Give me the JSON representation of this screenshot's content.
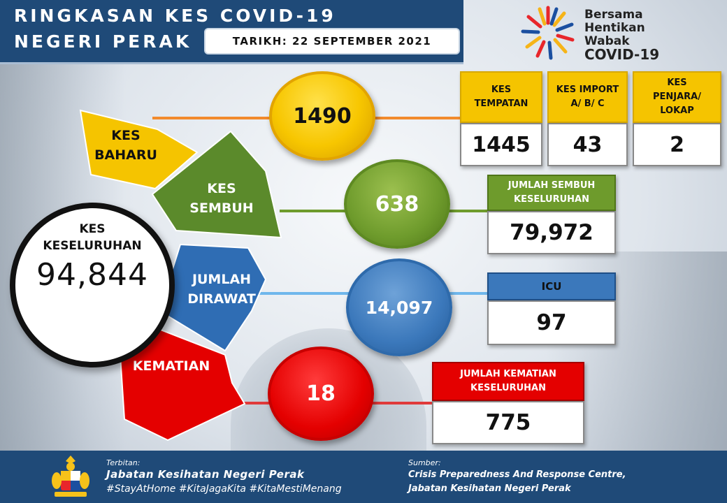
{
  "header": {
    "title_line1": "RINGKASAN KES COVID-19",
    "title_line2": "NEGERI PERAK",
    "date": "TARIKH: 22 SEPTEMBER 2021"
  },
  "logo": {
    "line1": "Bersama",
    "line2": "Hentikan",
    "line3": "Wabak",
    "line4": "COVID-19"
  },
  "total": {
    "label_line1": "KES",
    "label_line2": "KESELURUHAN",
    "value": "94,844"
  },
  "segments": {
    "baharu": {
      "line1": "KES",
      "line2": "BAHARU",
      "value": "1490"
    },
    "sembuh": {
      "line1": "KES",
      "line2": "SEMBUH",
      "value": "638"
    },
    "dirawat": {
      "line1": "JUMLAH",
      "line2": "DIRAWAT",
      "value": "14,097"
    },
    "kematian": {
      "line1": "KEMATIAN",
      "value": "18"
    }
  },
  "breakdown": {
    "tempatan": {
      "label_line1": "KES",
      "label_line2": "TEMPATAN",
      "value": "1445"
    },
    "import": {
      "label_line1": "KES IMPORT",
      "label_line2": "A/ B/ C",
      "value": "43"
    },
    "penjara": {
      "label_line1": "KES",
      "label_line2": "PENJARA/",
      "label_line3": "LOKAP",
      "value": "2"
    }
  },
  "sembuh_total": {
    "label_line1": "JUMLAH SEMBUH",
    "label_line2": "KESELURUHAN",
    "value": "79,972"
  },
  "icu": {
    "label": "ICU",
    "value": "97"
  },
  "kematian_total": {
    "label_line1": "JUMLAH KEMATIAN",
    "label_line2": "KESELURUHAN",
    "value": "775"
  },
  "footer": {
    "terbitan_label": "Terbitan:",
    "publisher": "Jabatan Kesihatan Negeri Perak",
    "hashtags": "#StayAtHome #KitaJagaKita #KitaMestiMenang",
    "sumber_label": "Sumber:",
    "source_line1": "Crisis Preparedness And Response Centre,",
    "source_line2": "Jabatan Kesihatan Negeri Perak"
  },
  "colors": {
    "navy": "#1f4a78",
    "yellow": "#f7c600",
    "green": "#6e9b2c",
    "blue": "#3b78bb",
    "red": "#e40000"
  }
}
